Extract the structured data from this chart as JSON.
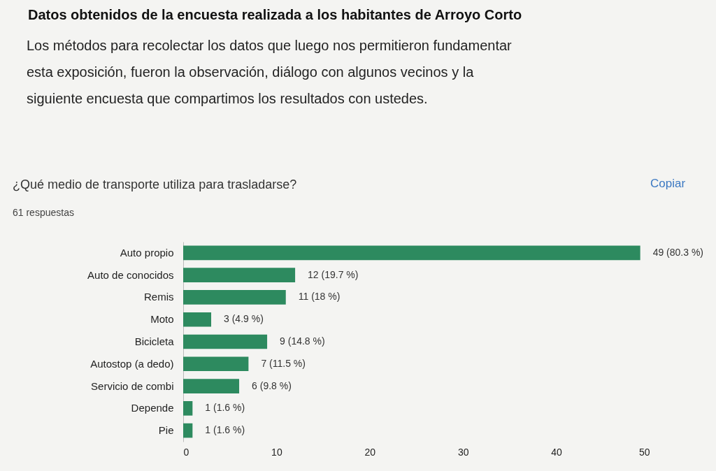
{
  "chart_data": {
    "type": "bar",
    "orientation": "horizontal",
    "title": "¿Qué medio de transporte utiliza para trasladarse?",
    "subtitle": "61 respuestas",
    "annotations": [
      "Datos obtenidos de la encuesta realizada a los habitantes de Arroyo Corto",
      "Los métodos para recolectar los datos que luego nos permitieron fundamentar\nesta exposición, fueron la observación, diálogo con algunos vecinos y la\nsiguiente encuesta que compartimos los resultados con ustedes.",
      "Copiar"
    ],
    "categories": [
      "Auto propio",
      "Auto de conocidos",
      "Remis",
      "Moto",
      "Bicicleta",
      "Autostop (a dedo)",
      "Servicio de combi",
      "Depende",
      "Pie"
    ],
    "values": [
      49,
      12,
      11,
      3,
      9,
      7,
      6,
      1,
      1
    ],
    "value_labels": [
      "49 (80.3 %)",
      "12 (19.7 %)",
      "11 (18 %)",
      "3 (4.9 %)",
      "9 (14.8 %)",
      "7 (11.5 %)",
      "6 (9.8 %)",
      "1 (1.6 %)",
      "1 (1.6 %)"
    ],
    "color": "#2d8a5f",
    "xlim": [
      0,
      50
    ],
    "xticks": [
      0,
      10,
      20,
      30,
      40,
      50
    ],
    "grid": false
  }
}
